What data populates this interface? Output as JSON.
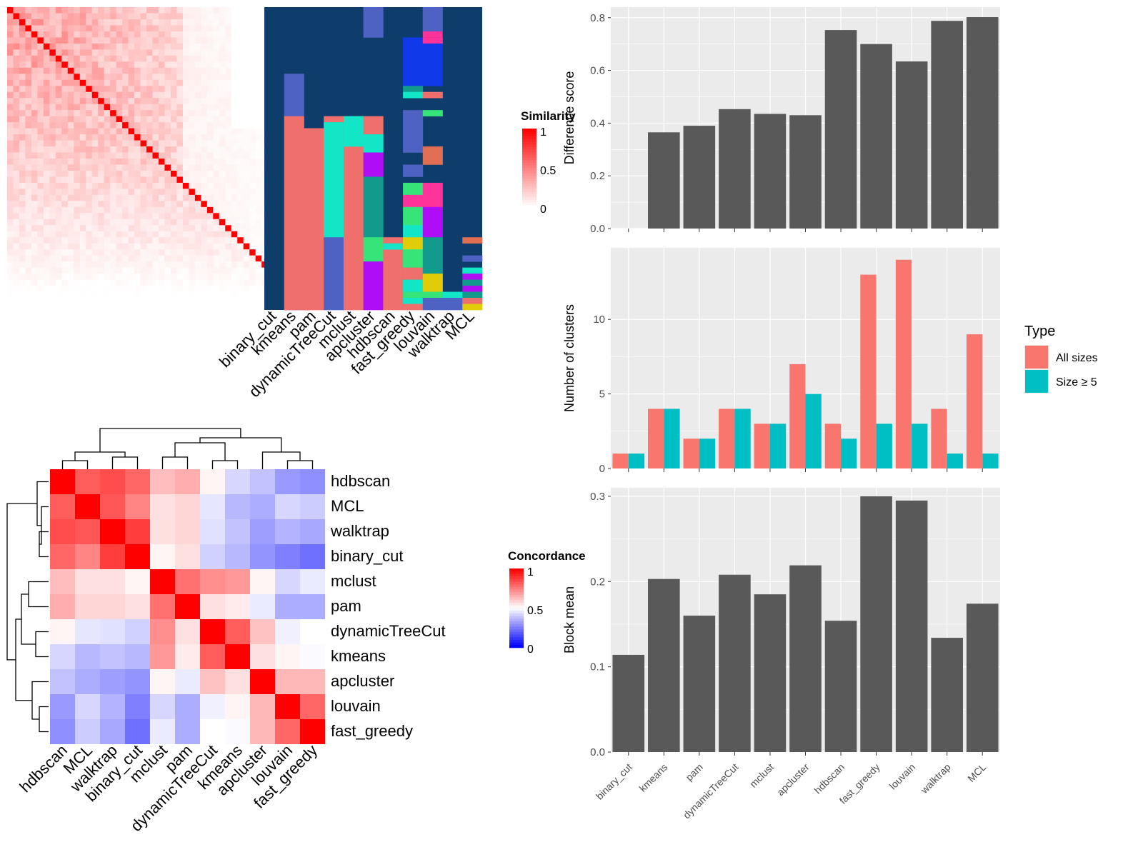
{
  "colors": {
    "panel_bg": "#ebebeb",
    "grid": "#ffffff",
    "bar": "#595959",
    "all_sizes": "#f8766d",
    "size_ge5": "#00bfc4",
    "class_bg": "#0f3d6b",
    "sim_high": "#ff0000",
    "sim_low": "#ffffff",
    "conc_high": "#ff0000",
    "conc_mid": "#ffffff",
    "conc_low": "#0000ff"
  },
  "methods": [
    "binary_cut",
    "kmeans",
    "pam",
    "dynamicTreeCut",
    "mclust",
    "apcluster",
    "hdbscan",
    "fast_greedy",
    "louvain",
    "walktrap",
    "MCL"
  ],
  "similarity_legend": {
    "title": "Similarity",
    "ticks": [
      "1",
      "0.5",
      "0"
    ]
  },
  "concordance": {
    "legend": {
      "title": "Concordance",
      "ticks": [
        "1",
        "0.5",
        "0"
      ]
    },
    "order": [
      "hdbscan",
      "MCL",
      "walktrap",
      "binary_cut",
      "mclust",
      "pam",
      "dynamicTreeCut",
      "kmeans",
      "apcluster",
      "louvain",
      "fast_greedy"
    ],
    "matrix": [
      [
        1.0,
        0.82,
        0.85,
        0.8,
        0.63,
        0.66,
        0.52,
        0.42,
        0.38,
        0.3,
        0.28
      ],
      [
        0.82,
        1.0,
        0.83,
        0.74,
        0.56,
        0.58,
        0.45,
        0.36,
        0.34,
        0.42,
        0.4
      ],
      [
        0.85,
        0.83,
        1.0,
        0.88,
        0.56,
        0.58,
        0.44,
        0.38,
        0.31,
        0.35,
        0.33
      ],
      [
        0.8,
        0.74,
        0.88,
        1.0,
        0.52,
        0.56,
        0.41,
        0.36,
        0.29,
        0.25,
        0.22
      ],
      [
        0.63,
        0.56,
        0.56,
        0.52,
        1.0,
        0.78,
        0.72,
        0.7,
        0.52,
        0.42,
        0.46
      ],
      [
        0.66,
        0.58,
        0.58,
        0.56,
        0.78,
        1.0,
        0.56,
        0.54,
        0.46,
        0.34,
        0.34
      ],
      [
        0.52,
        0.45,
        0.44,
        0.41,
        0.72,
        0.56,
        1.0,
        0.82,
        0.62,
        0.47,
        0.5
      ],
      [
        0.42,
        0.36,
        0.38,
        0.36,
        0.7,
        0.54,
        0.82,
        1.0,
        0.56,
        0.52,
        0.49
      ],
      [
        0.38,
        0.34,
        0.31,
        0.29,
        0.52,
        0.46,
        0.62,
        0.56,
        1.0,
        0.64,
        0.64
      ],
      [
        0.3,
        0.42,
        0.35,
        0.25,
        0.42,
        0.34,
        0.47,
        0.52,
        0.64,
        1.0,
        0.8
      ],
      [
        0.28,
        0.4,
        0.33,
        0.22,
        0.46,
        0.34,
        0.5,
        0.49,
        0.64,
        0.8,
        1.0
      ]
    ]
  },
  "chart_data": [
    {
      "type": "bar",
      "categories": [
        "binary_cut",
        "kmeans",
        "pam",
        "dynamicTreeCut",
        "mclust",
        "apcluster",
        "hdbscan",
        "fast_greedy",
        "louvain",
        "walktrap",
        "MCL"
      ],
      "values": [
        0.0,
        0.365,
        0.39,
        0.453,
        0.435,
        0.43,
        0.753,
        0.7,
        0.634,
        0.788,
        0.802
      ],
      "ylabel": "Difference score",
      "ylim": [
        0,
        0.84
      ],
      "yticks": [
        "0.0",
        "0.2",
        "0.4",
        "0.6",
        "0.8"
      ],
      "grid": true
    },
    {
      "type": "bar",
      "categories": [
        "binary_cut",
        "kmeans",
        "pam",
        "dynamicTreeCut",
        "mclust",
        "apcluster",
        "hdbscan",
        "fast_greedy",
        "louvain",
        "walktrap",
        "MCL"
      ],
      "series": [
        {
          "name": "All sizes",
          "values": [
            1,
            4,
            2,
            4,
            3,
            7,
            3,
            13,
            14,
            4,
            9
          ]
        },
        {
          "name": "Size ≥ 5",
          "values": [
            1,
            4,
            2,
            4,
            3,
            5,
            2,
            3,
            3,
            1,
            1
          ]
        }
      ],
      "ylabel": "Number of clusters",
      "ylim": [
        0,
        14.8
      ],
      "yticks": [
        "0",
        "5",
        "10"
      ],
      "legend": {
        "title": "Type",
        "position": "right"
      },
      "grid": true
    },
    {
      "type": "bar",
      "categories": [
        "binary_cut",
        "kmeans",
        "pam",
        "dynamicTreeCut",
        "mclust",
        "apcluster",
        "hdbscan",
        "fast_greedy",
        "louvain",
        "walktrap",
        "MCL"
      ],
      "values": [
        0.114,
        0.203,
        0.16,
        0.208,
        0.185,
        0.219,
        0.154,
        0.3,
        0.295,
        0.134,
        0.174
      ],
      "ylabel": "Block mean",
      "ylim": [
        0,
        0.31
      ],
      "yticks": [
        "0.0",
        "0.1",
        "0.2",
        "0.3"
      ],
      "xticklabels": [
        "binary_cut",
        "kmeans",
        "pam",
        "dynamicTreeCut",
        "mclust",
        "apcluster",
        "hdbscan",
        "fast_greedy",
        "louvain",
        "walktrap",
        "MCL"
      ],
      "grid": true
    }
  ]
}
